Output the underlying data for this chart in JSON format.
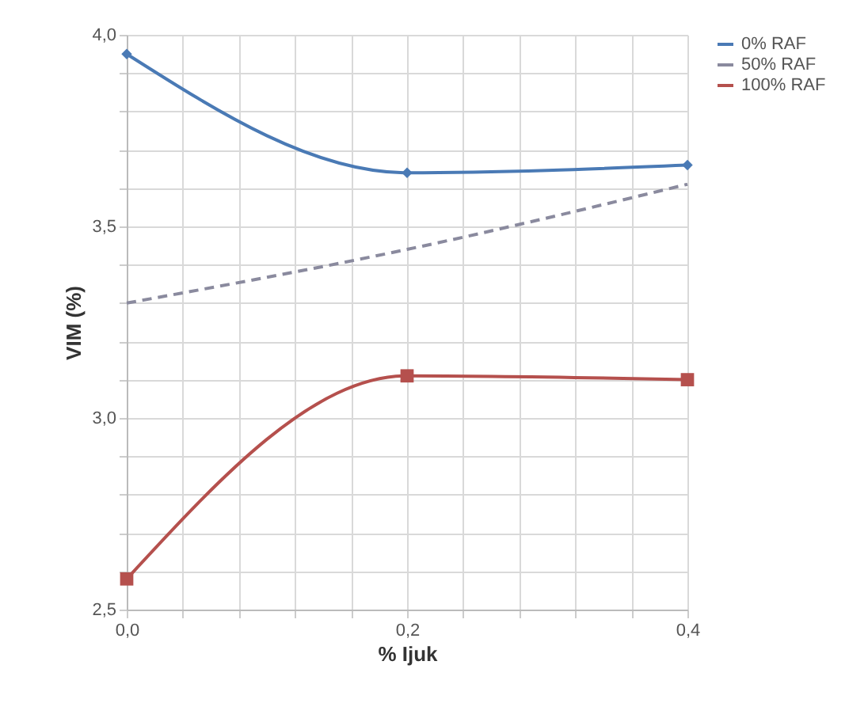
{
  "chart_data": {
    "type": "line",
    "xlabel": "% Ijuk",
    "ylabel": "VIM (%)",
    "x": [
      0,
      0.2,
      0.4
    ],
    "series": [
      {
        "name": "0% RAF",
        "color": "#4a7ab5",
        "values": [
          3.95,
          3.64,
          3.66
        ],
        "marker": "diamond",
        "line_style": "solid"
      },
      {
        "name": "50% RAF",
        "color": "#8a8a9e",
        "values": [
          3.3,
          3.44,
          3.61
        ],
        "marker": "none",
        "line_style": "dashed"
      },
      {
        "name": "100% RAF",
        "color": "#b5504d",
        "values": [
          2.58,
          3.11,
          3.1
        ],
        "marker": "square",
        "line_style": "solid"
      }
    ],
    "xlim": [
      0,
      0.4
    ],
    "xticks": [
      {
        "value": 0,
        "label": "0,0"
      },
      {
        "value": 0.04,
        "label": null
      },
      {
        "value": 0.08,
        "label": null
      },
      {
        "value": 0.12,
        "label": null
      },
      {
        "value": 0.16,
        "label": null
      },
      {
        "value": 0.2,
        "label": "0,2"
      },
      {
        "value": 0.24,
        "label": null
      },
      {
        "value": 0.28,
        "label": null
      },
      {
        "value": 0.32,
        "label": null
      },
      {
        "value": 0.36,
        "label": null
      },
      {
        "value": 0.4,
        "label": "0,4"
      }
    ],
    "ylim": [
      2.5,
      4.0
    ],
    "yticks": [
      {
        "value": 2.5,
        "label": "2,5"
      },
      {
        "value": 2.6,
        "label": null
      },
      {
        "value": 2.7,
        "label": null
      },
      {
        "value": 2.8,
        "label": null
      },
      {
        "value": 2.9,
        "label": null
      },
      {
        "value": 3.0,
        "label": "3,0"
      },
      {
        "value": 3.1,
        "label": null
      },
      {
        "value": 3.2,
        "label": null
      },
      {
        "value": 3.3,
        "label": null
      },
      {
        "value": 3.4,
        "label": null
      },
      {
        "value": 3.5,
        "label": "3,5"
      },
      {
        "value": 3.6,
        "label": null
      },
      {
        "value": 3.7,
        "label": null
      },
      {
        "value": 3.8,
        "label": null
      },
      {
        "value": 3.9,
        "label": null
      },
      {
        "value": 4.0,
        "label": "4,0"
      }
    ],
    "grid": true,
    "legend": "right"
  }
}
